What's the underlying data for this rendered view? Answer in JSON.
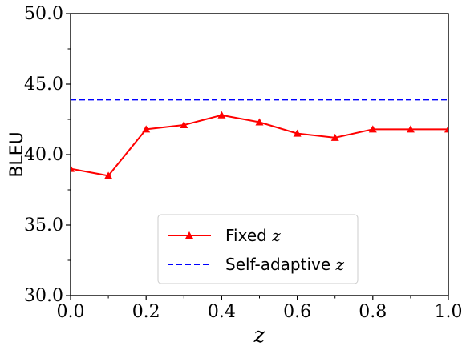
{
  "chart_data": {
    "type": "line",
    "x": [
      0.0,
      0.1,
      0.2,
      0.3,
      0.4,
      0.5,
      0.6,
      0.7,
      0.8,
      0.9,
      1.0
    ],
    "series": [
      {
        "name": "Fixed z",
        "name_prefix": "Fixed",
        "name_var": "z",
        "color": "#ff0000",
        "marker": "triangle",
        "linestyle": "solid",
        "values": [
          39.0,
          38.5,
          41.8,
          42.1,
          42.8,
          42.3,
          41.5,
          41.2,
          41.8,
          41.8,
          41.8
        ]
      },
      {
        "name": "Self-adaptive z",
        "name_prefix": "Self-adaptive",
        "name_var": "z",
        "color": "#0000ff",
        "marker": "none",
        "linestyle": "dashed",
        "values": [
          43.9,
          43.9,
          43.9,
          43.9,
          43.9,
          43.9,
          43.9,
          43.9,
          43.9,
          43.9,
          43.9
        ]
      }
    ],
    "xlabel": "z",
    "ylabel": "BLEU",
    "xlim": [
      0.0,
      1.0
    ],
    "ylim": [
      30.0,
      50.0
    ],
    "xticks": [
      "0.0",
      "0.2",
      "0.4",
      "0.6",
      "0.8",
      "1.0"
    ],
    "yticks": [
      "30.0",
      "35.0",
      "40.0",
      "45.0",
      "50.0"
    ],
    "grid": false,
    "legend_position": "lower-center"
  }
}
